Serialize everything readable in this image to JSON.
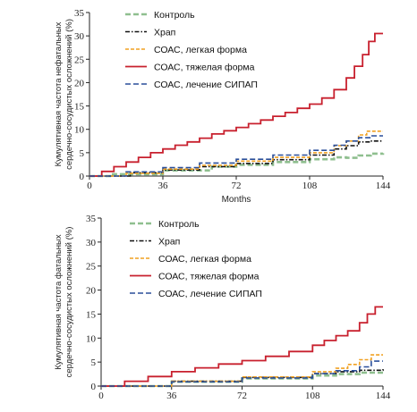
{
  "chart_data": [
    {
      "type": "line",
      "step": true,
      "ylabel_lines": [
        "Кумулятивная частота нефатальных",
        "сердечно-сосудистых осложнений (%)"
      ],
      "xlabel": "Months",
      "xlim": [
        0,
        144
      ],
      "ylim": [
        0,
        35
      ],
      "xticks": [
        0,
        36,
        72,
        108,
        144
      ],
      "yticks": [
        0,
        5,
        10,
        15,
        20,
        25,
        30,
        35
      ],
      "legend": "top-left",
      "series": [
        {
          "name": "Контроль",
          "color": "#8fbf8f",
          "dash": "6,3",
          "width": 2.6,
          "x": [
            0,
            10,
            36,
            60,
            72,
            90,
            108,
            120,
            126,
            132,
            138,
            144
          ],
          "y": [
            0,
            0.4,
            1.2,
            2.0,
            2.4,
            3.0,
            3.6,
            4.0,
            3.9,
            4.4,
            4.8,
            4.9
          ]
        },
        {
          "name": "Храп",
          "color": "#111111",
          "dash": "5,2,1.5,2",
          "width": 1.6,
          "x": [
            0,
            20,
            36,
            54,
            72,
            90,
            108,
            120,
            126,
            132,
            138,
            144
          ],
          "y": [
            0,
            0.7,
            1.3,
            2.0,
            2.7,
            3.5,
            4.5,
            5.8,
            6.5,
            7.3,
            7.5,
            7.5
          ]
        },
        {
          "name": "СОАС, легкая форма",
          "color": "#f0a020",
          "dash": "4,2",
          "width": 1.6,
          "x": [
            0,
            18,
            36,
            54,
            72,
            90,
            108,
            120,
            126,
            132,
            136,
            144
          ],
          "y": [
            0,
            0.6,
            1.5,
            2.3,
            3.2,
            4.0,
            5.0,
            6.5,
            7.5,
            8.8,
            9.6,
            9.6
          ]
        },
        {
          "name": "СОАС, тяжелая форма",
          "color": "#c8202e",
          "dash": "",
          "width": 1.8,
          "x": [
            0,
            6,
            12,
            18,
            24,
            30,
            36,
            42,
            48,
            54,
            60,
            66,
            72,
            78,
            84,
            90,
            96,
            102,
            108,
            114,
            120,
            126,
            130,
            134,
            137,
            140,
            144
          ],
          "y": [
            0,
            1.0,
            2.0,
            3.0,
            4.0,
            5.0,
            5.8,
            6.6,
            7.3,
            8.1,
            9.0,
            9.7,
            10.4,
            11.2,
            12.0,
            12.8,
            13.6,
            14.5,
            15.4,
            16.7,
            18.5,
            21.0,
            23.5,
            26.0,
            28.8,
            30.5,
            30.5
          ]
        },
        {
          "name": "СОАС, лечение СИПАП",
          "color": "#2a4f9a",
          "dash": "6,3",
          "width": 1.6,
          "x": [
            0,
            18,
            36,
            54,
            72,
            90,
            108,
            120,
            126,
            132,
            138,
            144
          ],
          "y": [
            0,
            0.9,
            1.8,
            2.8,
            3.6,
            4.5,
            5.5,
            6.6,
            7.5,
            8.2,
            8.6,
            8.6
          ]
        }
      ]
    },
    {
      "type": "line",
      "step": true,
      "ylabel_lines": [
        "Кумулятивная частота фатальных",
        "сердечно-сосудистых осложнений (%)"
      ],
      "xlabel": "",
      "xlim": [
        0,
        144
      ],
      "ylim": [
        0,
        35
      ],
      "xticks": [
        0,
        36,
        72,
        108,
        144
      ],
      "yticks": [
        0,
        5,
        10,
        15,
        20,
        25,
        30,
        35
      ],
      "legend": "top-left",
      "series": [
        {
          "name": "Контроль",
          "color": "#8fbf8f",
          "dash": "6,3",
          "width": 2.6,
          "x": [
            0,
            36,
            72,
            108,
            120,
            132,
            144
          ],
          "y": [
            0,
            0.9,
            1.6,
            2.2,
            2.5,
            2.8,
            3.0
          ]
        },
        {
          "name": "Храп",
          "color": "#111111",
          "dash": "5,2,1.5,2",
          "width": 1.6,
          "x": [
            0,
            36,
            72,
            108,
            120,
            132,
            144
          ],
          "y": [
            0,
            1.0,
            1.8,
            2.6,
            3.0,
            3.3,
            3.6
          ]
        },
        {
          "name": "СОАС, легкая форма",
          "color": "#f0a020",
          "dash": "4,2",
          "width": 1.6,
          "x": [
            0,
            36,
            72,
            108,
            120,
            126,
            132,
            138,
            144
          ],
          "y": [
            0,
            1.0,
            1.9,
            3.0,
            3.7,
            4.5,
            5.5,
            6.5,
            6.5
          ]
        },
        {
          "name": "СОАС, тяжелая форма",
          "color": "#c8202e",
          "dash": "",
          "width": 1.8,
          "x": [
            0,
            12,
            24,
            36,
            48,
            60,
            72,
            84,
            96,
            108,
            114,
            120,
            126,
            132,
            136,
            140,
            144
          ],
          "y": [
            0,
            1.0,
            2.0,
            3.0,
            3.8,
            4.6,
            5.3,
            6.2,
            7.2,
            8.5,
            9.5,
            10.5,
            11.5,
            13.2,
            15.0,
            16.5,
            16.5
          ]
        },
        {
          "name": "СОАС, лечение СИПАП",
          "color": "#2a4f9a",
          "dash": "6,3",
          "width": 1.6,
          "x": [
            0,
            36,
            72,
            108,
            120,
            132,
            138,
            144
          ],
          "y": [
            0,
            0.9,
            1.7,
            2.6,
            3.2,
            4.0,
            5.2,
            5.2
          ]
        }
      ]
    }
  ]
}
